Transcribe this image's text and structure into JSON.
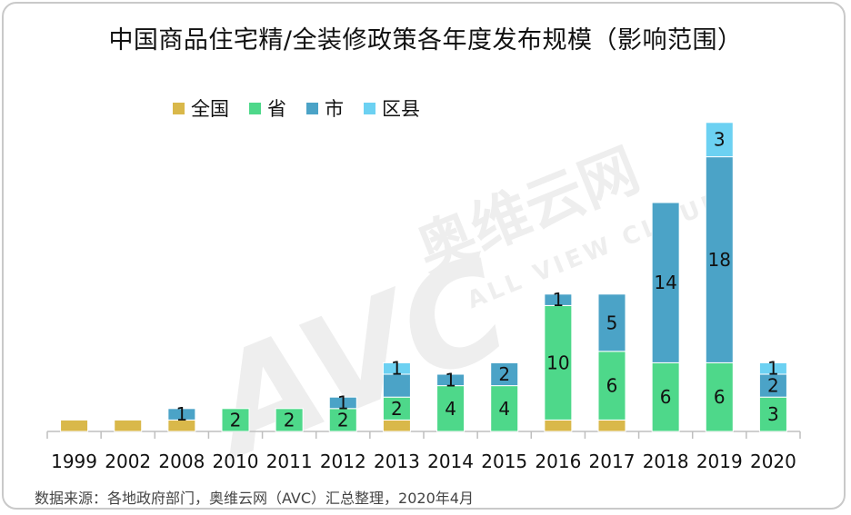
{
  "title": "中国商品住宅精/全装修政策各年度发布规模（影响范围）",
  "source": "数据来源：各地政府部门，奥维云网（AVC）汇总整理，2020年4月",
  "watermark": {
    "brand_cn": "奥维云网",
    "brand_en": "ALL VIEW CLOUD",
    "logo": "AVC"
  },
  "chart_data": {
    "type": "bar",
    "stacked": true,
    "categories": [
      "1999",
      "2002",
      "2008",
      "2010",
      "2011",
      "2012",
      "2013",
      "2014",
      "2015",
      "2016",
      "2017",
      "2018",
      "2019",
      "2020"
    ],
    "series": [
      {
        "name": "全国",
        "color": "#d9b84a",
        "values": [
          1,
          1,
          1,
          0,
          0,
          0,
          1,
          0,
          0,
          1,
          1,
          0,
          0,
          0
        ],
        "labels": [
          "",
          "",
          "",
          "",
          "",
          "",
          "",
          "",
          "",
          "",
          "",
          "",
          "",
          ""
        ]
      },
      {
        "name": "省",
        "color": "#4ed88a",
        "values": [
          0,
          0,
          0,
          2,
          2,
          2,
          2,
          4,
          4,
          10,
          6,
          6,
          6,
          3
        ],
        "labels": [
          "",
          "",
          "",
          "2",
          "2",
          "2",
          "2",
          "4",
          "4",
          "10",
          "6",
          "6",
          "6",
          "3"
        ]
      },
      {
        "name": "市",
        "color": "#4ba3c7",
        "values": [
          0,
          0,
          1,
          0,
          0,
          1,
          2,
          1,
          2,
          1,
          5,
          14,
          18,
          2
        ],
        "labels": [
          "",
          "",
          "1",
          "",
          "",
          "1",
          "",
          "1",
          "2",
          "1",
          "5",
          "14",
          "18",
          "2"
        ]
      },
      {
        "name": "区县",
        "color": "#6cd1f2",
        "values": [
          0,
          0,
          0,
          0,
          0,
          0,
          1,
          0,
          0,
          0,
          0,
          0,
          3,
          1
        ],
        "labels": [
          "",
          "",
          "",
          "",
          "",
          "",
          "1",
          "",
          "",
          "",
          "",
          "",
          "3",
          "1"
        ]
      }
    ],
    "ylim": [
      0,
      27
    ],
    "xlabel": "",
    "ylabel": "",
    "grid": false,
    "legend_position": "top"
  }
}
